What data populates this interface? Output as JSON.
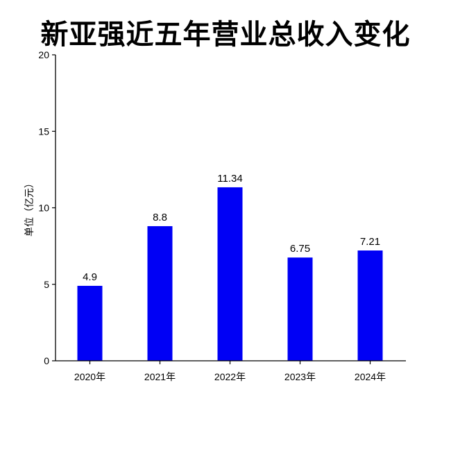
{
  "chart_data": {
    "type": "bar",
    "title": "新亚强近五年营业总收入变化",
    "ylabel": "单位（亿元）",
    "xlabel": "",
    "categories": [
      "2020年",
      "2021年",
      "2022年",
      "2023年",
      "2024年"
    ],
    "values": [
      4.9,
      8.8,
      11.34,
      6.75,
      7.21
    ],
    "value_labels": [
      "4.9",
      "8.8",
      "11.34",
      "6.75",
      "7.21"
    ],
    "ylim": [
      0,
      20
    ],
    "yticks": [
      0,
      5,
      10,
      15,
      20
    ],
    "bar_color": "#0000f5",
    "grid": false,
    "legend": "none"
  }
}
